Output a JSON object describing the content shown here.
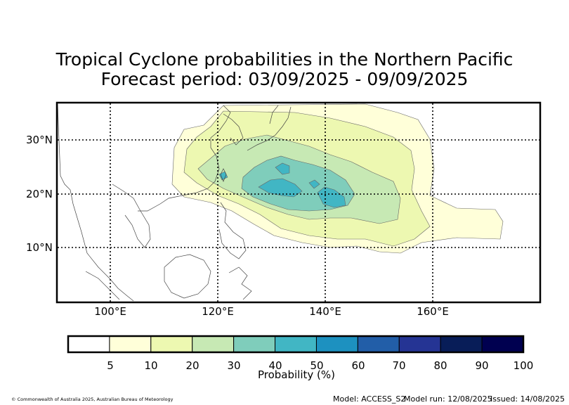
{
  "title": {
    "line1": "Tropical Cyclone probabilities in the Northern Pacific",
    "line2": "Forecast period: 03/09/2025 - 09/09/2025"
  },
  "map": {
    "lat_labels": [
      "30°N",
      "20°N",
      "10°N"
    ],
    "lon_labels": [
      "100°E",
      "120°E",
      "140°E",
      "160°E"
    ]
  },
  "colorbar": {
    "label": "Probability (%)",
    "ticks": [
      "5",
      "10",
      "20",
      "30",
      "40",
      "50",
      "60",
      "70",
      "80",
      "90",
      "100"
    ],
    "colors": [
      "#ffffff",
      "#ffffd9",
      "#edf8b1",
      "#c7e9b4",
      "#7fcdbb",
      "#41b6c4",
      "#1d91c0",
      "#225ea8",
      "#253494",
      "#081d58",
      "#000050"
    ]
  },
  "footer": {
    "copyright": "© Commonwealth of Australia 2025, Australian Bureau of Meteorology",
    "model": "Model: ACCESS_S2",
    "model_run": "Model run: 12/08/2025",
    "issued": "Issued: 14/08/2025"
  }
}
